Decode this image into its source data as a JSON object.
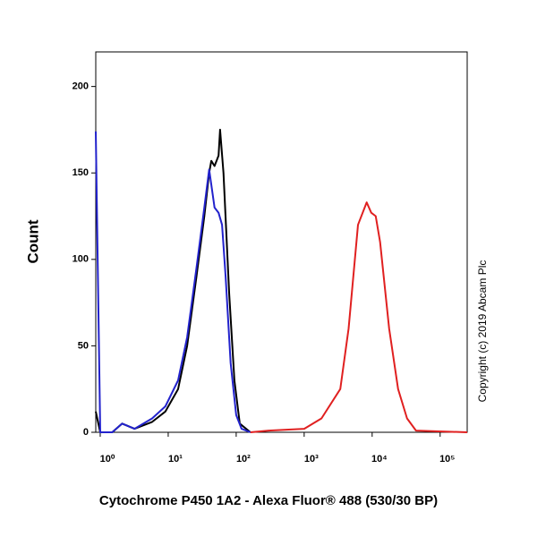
{
  "chart_data": {
    "type": "line",
    "x_label": "Cytochrome P450 1A2 - Alexa Fluor® 488 (530/30 BP)",
    "y_label": "Count",
    "annotation": "Copyright (c) 2019 Abcam Plc",
    "xscale": "log",
    "xlim": [
      0.86,
      250000
    ],
    "ylim": [
      0,
      220
    ],
    "xticks": [
      {
        "value": 1,
        "label": "10⁰"
      },
      {
        "value": 10,
        "label": "10¹"
      },
      {
        "value": 100,
        "label": "10²"
      },
      {
        "value": 1000,
        "label": "10³"
      },
      {
        "value": 10000,
        "label": "10⁴"
      },
      {
        "value": 100000,
        "label": "10⁵"
      }
    ],
    "yticks": [
      0,
      50,
      100,
      150,
      200
    ],
    "series": [
      {
        "color": "#000000",
        "x": [
          0.86,
          1.0,
          1.5,
          2.1,
          3.2,
          5.8,
          9.1,
          14,
          19,
          26,
          34,
          40,
          43,
          48,
          55,
          58,
          65,
          79,
          94,
          113,
          162
        ],
        "values": [
          12,
          0,
          0,
          5,
          2,
          6,
          12,
          25,
          50,
          90,
          125,
          150,
          157,
          154,
          160,
          175,
          150,
          80,
          30,
          5,
          0
        ]
      },
      {
        "color": "#2222cc",
        "x": [
          0.86,
          1.0,
          1.5,
          2.1,
          3.2,
          5.8,
          9.1,
          14,
          19,
          26,
          34,
          40,
          48,
          55,
          62,
          70,
          83,
          100,
          120,
          162
        ],
        "values": [
          174,
          0,
          0,
          5,
          2,
          8,
          15,
          30,
          55,
          95,
          130,
          152,
          130,
          127,
          120,
          90,
          40,
          10,
          2,
          0
        ]
      },
      {
        "color": "#e02020",
        "x": [
          162,
          300,
          1000,
          1800,
          3400,
          4500,
          6200,
          8300,
          9700,
          11300,
          13100,
          17800,
          24100,
          32600,
          44200,
          250000
        ],
        "values": [
          0,
          1,
          2,
          8,
          25,
          60,
          120,
          133,
          127,
          125,
          110,
          60,
          25,
          8,
          1,
          0
        ]
      }
    ]
  }
}
